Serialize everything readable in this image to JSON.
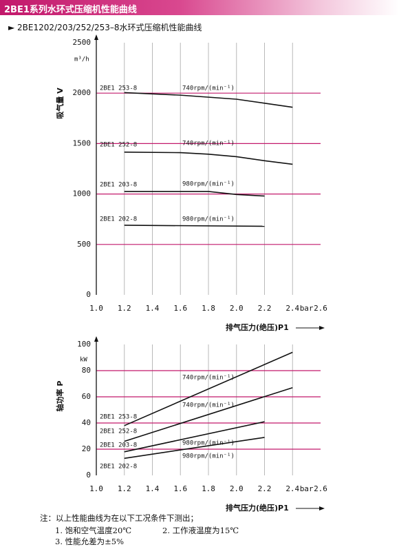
{
  "header": {
    "title": "2BE1系列水环式压缩机性能曲线",
    "subtitle": "► 2BE1202/203/252/253–8水环式压缩机性能曲线"
  },
  "chart_data": [
    {
      "type": "line",
      "y_label": "吸气量 V",
      "y_unit": "m³/h",
      "x_label": "排气压力(绝压)P1",
      "x_unit": "bar",
      "xlim": [
        1.0,
        2.6
      ],
      "xticks": [
        {
          "value": 1.0,
          "label": "1.0"
        },
        1.2,
        1.4,
        1.6,
        1.8,
        {
          "value": 2.0,
          "label": "2.0"
        },
        2.2,
        2.4,
        2.6
      ],
      "ylim": [
        0,
        2500
      ],
      "yticks": [
        0,
        500,
        1000,
        1500,
        2000,
        2500
      ],
      "grid_color": "#c2186b",
      "series": [
        {
          "name": "2BE1 253-8",
          "speed": "740rpm/(min⁻¹)",
          "color": "#111111",
          "x": [
            1.2,
            1.6,
            2.0,
            2.2,
            2.4
          ],
          "values": [
            2005,
            1980,
            1940,
            1900,
            1860
          ]
        },
        {
          "name": "2BE1 252-8",
          "speed": "740rpm/(min⁻¹)",
          "color": "#111111",
          "x": [
            1.2,
            1.6,
            1.8,
            2.0,
            2.2,
            2.4
          ],
          "values": [
            1415,
            1410,
            1395,
            1370,
            1330,
            1295
          ]
        },
        {
          "name": "2BE1 203-8",
          "speed": "980rpm/(min⁻¹)",
          "color": "#111111",
          "x": [
            1.2,
            1.8,
            2.0,
            2.2
          ],
          "values": [
            1025,
            1025,
            995,
            980
          ]
        },
        {
          "name": "2BE1 202-8",
          "speed": "980rpm/(min⁻¹)",
          "color": "#111111",
          "x": [
            1.2,
            2.2
          ],
          "values": [
            690,
            680
          ]
        }
      ]
    },
    {
      "type": "line",
      "y_label": "轴功率 P",
      "y_unit": "kW",
      "x_label": "排气压力(绝压)P1",
      "x_unit": "bar",
      "xlim": [
        1.0,
        2.6
      ],
      "xticks": [
        {
          "value": 1.0,
          "label": "1.0"
        },
        1.2,
        1.4,
        1.6,
        1.8,
        {
          "value": 2.0,
          "label": "2.0"
        },
        2.2,
        2.4,
        2.6
      ],
      "ylim": [
        0,
        100
      ],
      "yticks": [
        0,
        20,
        40,
        60,
        80,
        100
      ],
      "grid_color": "#c2186b",
      "series": [
        {
          "name": "2BE1 253-8",
          "speed": "740rpm/(min⁻¹)",
          "color": "#111111",
          "x": [
            1.2,
            2.4
          ],
          "values": [
            38,
            94
          ]
        },
        {
          "name": "2BE1 252-8",
          "speed": "740rpm/(min⁻¹)",
          "color": "#111111",
          "x": [
            1.2,
            2.4
          ],
          "values": [
            26,
            67
          ]
        },
        {
          "name": "2BE1 203-8",
          "speed": "980rpm/(min⁻¹)",
          "color": "#111111",
          "x": [
            1.2,
            2.2
          ],
          "values": [
            18,
            41
          ]
        },
        {
          "name": "2BE1 202-8",
          "speed": "980rpm/(min⁻¹)",
          "color": "#111111",
          "x": [
            1.2,
            2.2
          ],
          "values": [
            13,
            29
          ]
        }
      ]
    }
  ],
  "notes": {
    "intro": "注：以上性能曲线为在以下工况条件下测出；",
    "items": [
      "1. 饱和空气温度20℃",
      "2. 工作液温度为15℃",
      "3. 性能允差为±5%"
    ]
  }
}
